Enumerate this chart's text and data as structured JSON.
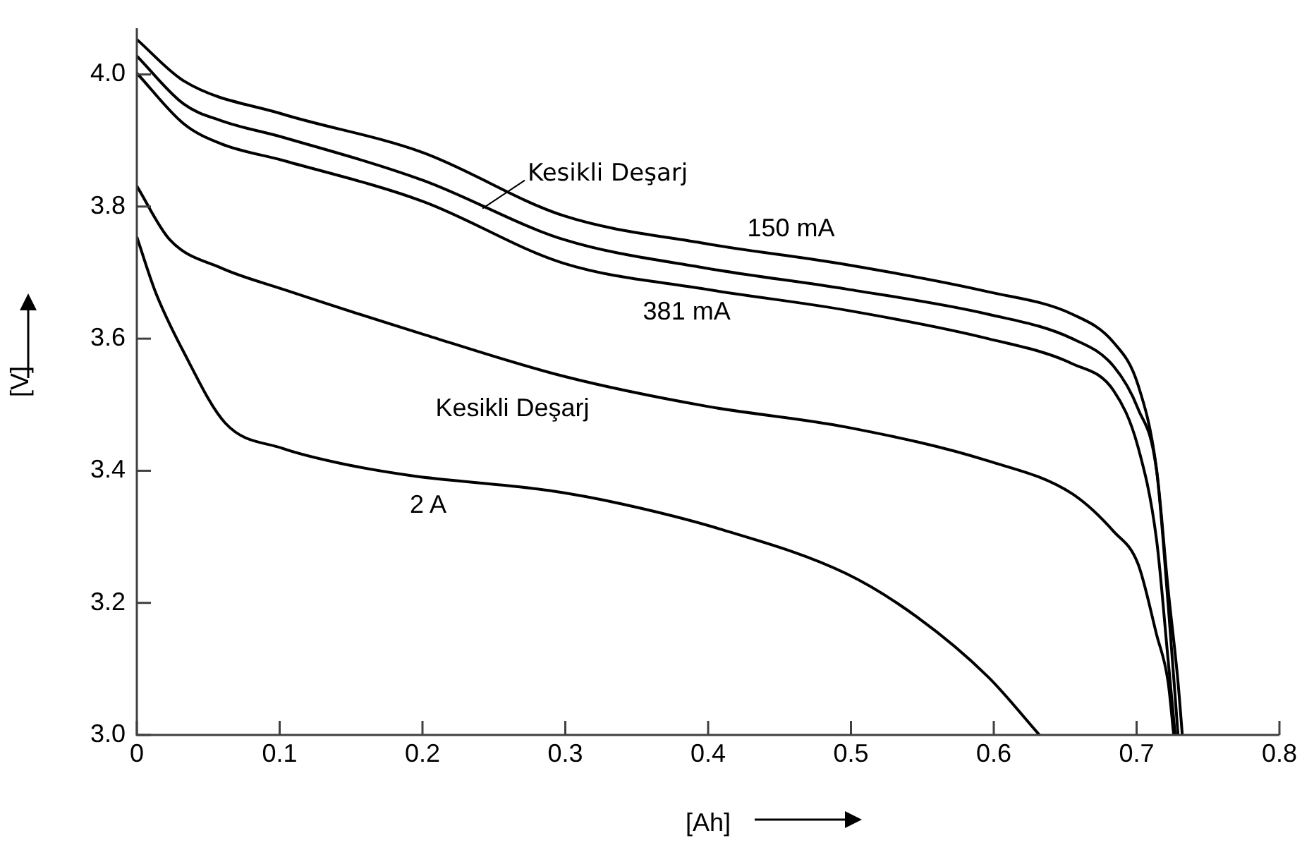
{
  "chart_data": {
    "type": "line",
    "xlabel": "[Ah]",
    "ylabel": "[V]",
    "xlim": [
      0,
      0.8
    ],
    "xticks": [
      0,
      0.1,
      0.2,
      0.3,
      0.4,
      0.5,
      0.6,
      0.7,
      0.8
    ],
    "ylim": [
      3.0,
      4.07
    ],
    "yticks": [
      {
        "value": 3,
        "label": "3.0"
      },
      3.2,
      3.4,
      3.6,
      3.8,
      {
        "value": 4,
        "label": "4.0"
      }
    ],
    "grid": false,
    "legend": false,
    "series": [
      {
        "color": "#000000",
        "x": [
          0,
          0.033,
          0.102,
          0.2,
          0.299,
          0.398,
          0.497,
          0.596,
          0.655,
          0.684,
          0.701,
          0.714,
          0.722,
          0.729,
          0.732
        ],
        "values": [
          4.053,
          3.99,
          3.94,
          3.882,
          3.786,
          3.744,
          3.712,
          3.671,
          3.637,
          3.594,
          3.53,
          3.402,
          3.222,
          3.08,
          3.0
        ]
      },
      {
        "color": "#000000",
        "x": [
          0,
          0.033,
          0.059,
          0.102,
          0.2,
          0.299,
          0.398,
          0.497,
          0.596,
          0.655,
          0.684,
          0.701,
          0.714,
          0.722,
          0.729
        ],
        "values": [
          4.028,
          3.955,
          3.93,
          3.905,
          3.84,
          3.75,
          3.707,
          3.675,
          3.637,
          3.6,
          3.558,
          3.494,
          3.4,
          3.2,
          3.0
        ]
      },
      {
        "color": "#000000",
        "x": [
          0,
          0.033,
          0.059,
          0.102,
          0.2,
          0.299,
          0.398,
          0.497,
          0.596,
          0.655,
          0.684,
          0.701,
          0.714,
          0.722,
          0.727
        ],
        "values": [
          4.002,
          3.925,
          3.895,
          3.87,
          3.808,
          3.714,
          3.675,
          3.643,
          3.6,
          3.562,
          3.521,
          3.436,
          3.295,
          3.115,
          3.0
        ]
      },
      {
        "color": "#000000",
        "x": [
          0,
          0.023,
          0.059,
          0.102,
          0.2,
          0.299,
          0.398,
          0.497,
          0.596,
          0.655,
          0.684,
          0.701,
          0.714,
          0.722,
          0.726
        ],
        "values": [
          3.831,
          3.75,
          3.707,
          3.675,
          3.607,
          3.543,
          3.498,
          3.466,
          3.415,
          3.365,
          3.308,
          3.259,
          3.152,
          3.081,
          3.0
        ]
      },
      {
        "color": "#000000",
        "x": [
          0,
          0.013,
          0.033,
          0.062,
          0.102,
          0.141,
          0.191,
          0.289,
          0.339,
          0.408,
          0.497,
          0.546,
          0.596,
          0.632
        ],
        "values": [
          3.754,
          3.671,
          3.579,
          3.472,
          3.434,
          3.412,
          3.393,
          3.37,
          3.35,
          3.312,
          3.244,
          3.179,
          3.088,
          3.0
        ]
      }
    ],
    "annotations": [
      {
        "text": "150 mA",
        "x": 0.458,
        "y": 3.725
      },
      {
        "text": "Kesikli Deşarj",
        "x": 0.242,
        "y": 3.797
      },
      {
        "text": "381 mA",
        "x": 0.385,
        "y": 3.68
      },
      {
        "text": "Kesikli Deşarj",
        "x": 0.263,
        "y": 3.57
      },
      {
        "text": "2 A",
        "x": 0.204,
        "y": 3.392
      }
    ]
  }
}
